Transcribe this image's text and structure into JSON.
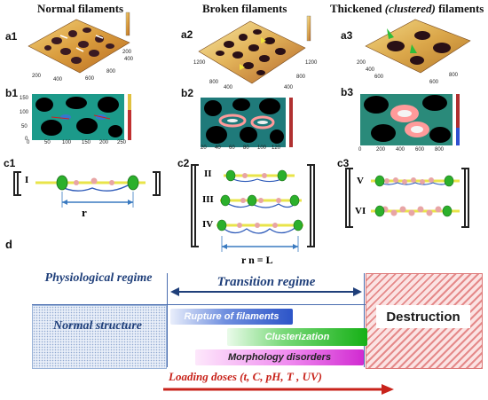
{
  "titles": {
    "normal": "Normal filaments",
    "broken": "Broken filaments",
    "thickened_prefix": "Thickened",
    "thickened_italic": "(clustered)",
    "thickened_suffix": "filaments"
  },
  "panel_labels": {
    "a1": "a1",
    "a2": "a2",
    "a3": "a3",
    "b1": "b1",
    "b2": "b2",
    "b3": "b3",
    "c1": "c1",
    "c2": "c2",
    "c3": "c3",
    "d": "d"
  },
  "afm_ticks": {
    "a1": [
      "200",
      "400",
      "600",
      "800",
      "200",
      "400"
    ],
    "a2": [
      "1200",
      "800",
      "400",
      "400",
      "800",
      "1200"
    ],
    "a3": [
      "600",
      "400",
      "200",
      "600",
      "800"
    ]
  },
  "heatmap_ticks": {
    "b1_x": [
      "0",
      "50",
      "100",
      "150",
      "200",
      "250"
    ],
    "b1_y": [
      "150",
      "100",
      "50",
      "0"
    ],
    "b2_x": [
      "20",
      "40",
      "60",
      "80",
      "100",
      "120"
    ],
    "b3_x": [
      "0",
      "200",
      "400",
      "600",
      "800"
    ]
  },
  "schema": {
    "c1_labels": [
      "I"
    ],
    "c1_dim": "r",
    "c2_labels": [
      "II",
      "III",
      "IV"
    ],
    "c2_dim": "r n = L",
    "c3_labels": [
      "V",
      "VI"
    ]
  },
  "regime": {
    "physiological": "Physiological regime",
    "transition": "Transition regime",
    "normal_structure": "Normal structure",
    "destruction": "Destruction"
  },
  "processes": [
    {
      "label": "Rupture of filaments",
      "color": "#3a5fcf"
    },
    {
      "label": "Clusterization",
      "color": "#22c022"
    },
    {
      "label": "Morphology disorders",
      "color": "#d62bd6"
    }
  ],
  "loading": "Loading doses (t, C, pH, T , UV)",
  "colors": {
    "regime_text": "#1f3f7a",
    "destruction_hatch": "#e58a8a",
    "arrow": "#c8231b",
    "filament_green": "#2bb02b",
    "filament_yellow": "#e9e44a"
  }
}
